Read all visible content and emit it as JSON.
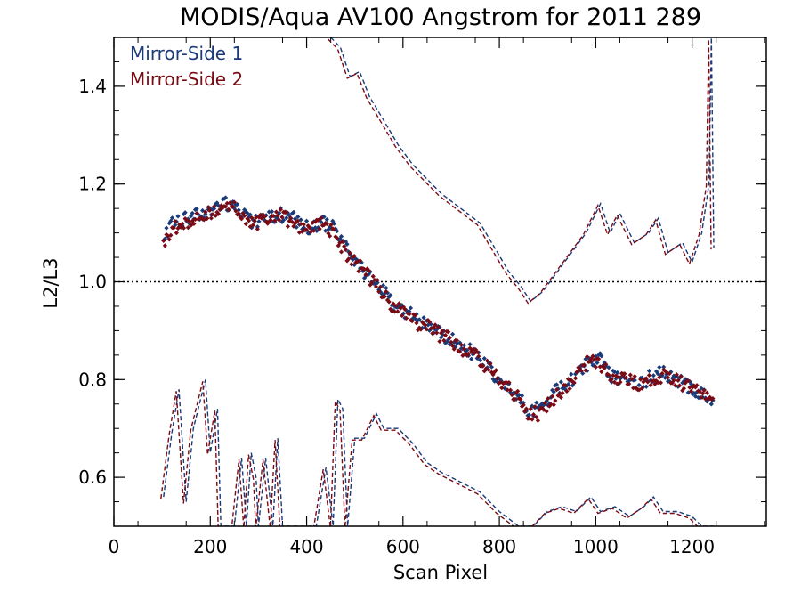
{
  "chart_data": {
    "type": "scatter",
    "title": "MODIS/Aqua AV100 Angstrom for 2011 289",
    "xlabel": "Scan Pixel",
    "ylabel": "L2/L3",
    "xlim": [
      0,
      1354
    ],
    "ylim": [
      0.5,
      1.5
    ],
    "xticks": [
      "0",
      "200",
      "400",
      "600",
      "800",
      "1000",
      "1200"
    ],
    "yticks": [
      "0.6",
      "0.8",
      "1.0",
      "1.2",
      "1.4"
    ],
    "reference_line": {
      "y": 1.0,
      "style": "dotted"
    },
    "legend": {
      "position": "top-left"
    },
    "colors": {
      "ms1": "#1a3a78",
      "ms2": "#7a0a14",
      "ref": "#000000"
    },
    "series": [
      {
        "name": "Mirror-Side 1",
        "color": "#1a3a78",
        "mean_points": [
          [
            103,
            1.09
          ],
          [
            120,
            1.12
          ],
          [
            150,
            1.13
          ],
          [
            180,
            1.14
          ],
          [
            210,
            1.15
          ],
          [
            240,
            1.16
          ],
          [
            260,
            1.15
          ],
          [
            290,
            1.12
          ],
          [
            320,
            1.13
          ],
          [
            340,
            1.14
          ],
          [
            370,
            1.13
          ],
          [
            400,
            1.11
          ],
          [
            430,
            1.12
          ],
          [
            460,
            1.11
          ],
          [
            480,
            1.07
          ],
          [
            500,
            1.04
          ],
          [
            520,
            1.02
          ],
          [
            540,
            1.0
          ],
          [
            560,
            0.98
          ],
          [
            580,
            0.95
          ],
          [
            600,
            0.94
          ],
          [
            620,
            0.93
          ],
          [
            650,
            0.91
          ],
          [
            680,
            0.89
          ],
          [
            700,
            0.88
          ],
          [
            720,
            0.87
          ],
          [
            750,
            0.85
          ],
          [
            780,
            0.82
          ],
          [
            800,
            0.8
          ],
          [
            820,
            0.78
          ],
          [
            840,
            0.76
          ],
          [
            860,
            0.74
          ],
          [
            880,
            0.74
          ],
          [
            900,
            0.76
          ],
          [
            920,
            0.78
          ],
          [
            950,
            0.8
          ],
          [
            970,
            0.82
          ],
          [
            990,
            0.84
          ],
          [
            1010,
            0.84
          ],
          [
            1030,
            0.81
          ],
          [
            1060,
            0.8
          ],
          [
            1090,
            0.79
          ],
          [
            1120,
            0.81
          ],
          [
            1140,
            0.82
          ],
          [
            1160,
            0.8
          ],
          [
            1180,
            0.8
          ],
          [
            1200,
            0.78
          ],
          [
            1220,
            0.77
          ],
          [
            1245,
            0.76
          ]
        ],
        "upper_band": [
          [
            103,
            0.56
          ],
          [
            120,
            0.69
          ],
          [
            135,
            0.78
          ],
          [
            150,
            0.55
          ],
          [
            165,
            0.7
          ],
          [
            190,
            0.8
          ],
          [
            200,
            0.65
          ],
          [
            215,
            0.74
          ],
          [
            222,
            0.5
          ],
          [
            230,
            0.5
          ],
          [
            250,
            0.5
          ],
          [
            265,
            0.64
          ],
          [
            275,
            0.5
          ],
          [
            285,
            0.65
          ],
          [
            295,
            0.6
          ],
          [
            300,
            0.5
          ],
          [
            315,
            0.64
          ],
          [
            330,
            0.5
          ],
          [
            340,
            0.68
          ],
          [
            350,
            0.5
          ],
          [
            380,
            0.5
          ],
          [
            395,
            0.5
          ],
          [
            400,
            0.5
          ],
          [
            420,
            0.5
          ],
          [
            440,
            0.62
          ],
          [
            455,
            0.5
          ],
          [
            465,
            0.76
          ],
          [
            475,
            0.74
          ],
          [
            485,
            0.5
          ],
          [
            500,
            0.68
          ],
          [
            520,
            0.68
          ],
          [
            545,
            0.73
          ],
          [
            560,
            0.7
          ],
          [
            590,
            0.7
          ],
          [
            620,
            0.67
          ],
          [
            650,
            0.63
          ],
          [
            680,
            0.61
          ],
          [
            720,
            0.59
          ],
          [
            760,
            0.57
          ],
          [
            800,
            0.53
          ],
          [
            840,
            0.5
          ],
          [
            870,
            0.5
          ],
          [
            900,
            0.53
          ],
          [
            930,
            0.54
          ],
          [
            960,
            0.53
          ],
          [
            990,
            0.56
          ],
          [
            1010,
            0.53
          ],
          [
            1040,
            0.54
          ],
          [
            1070,
            0.52
          ],
          [
            1100,
            0.54
          ],
          [
            1120,
            0.56
          ],
          [
            1140,
            0.53
          ],
          [
            1170,
            0.53
          ],
          [
            1200,
            0.52
          ],
          [
            1220,
            0.5
          ],
          [
            1245,
            0.5
          ]
        ],
        "lower_band": []
      },
      {
        "name": "Mirror-Side 2",
        "color": "#7a0a14",
        "mean_points": [
          [
            103,
            1.08
          ],
          [
            120,
            1.11
          ],
          [
            150,
            1.12
          ],
          [
            180,
            1.14
          ],
          [
            210,
            1.14
          ],
          [
            240,
            1.16
          ],
          [
            260,
            1.14
          ],
          [
            290,
            1.12
          ],
          [
            320,
            1.13
          ],
          [
            340,
            1.14
          ],
          [
            370,
            1.12
          ],
          [
            400,
            1.11
          ],
          [
            430,
            1.12
          ],
          [
            460,
            1.1
          ],
          [
            480,
            1.06
          ],
          [
            500,
            1.04
          ],
          [
            520,
            1.02
          ],
          [
            540,
            1.0
          ],
          [
            560,
            0.97
          ],
          [
            580,
            0.95
          ],
          [
            600,
            0.94
          ],
          [
            620,
            0.92
          ],
          [
            650,
            0.91
          ],
          [
            680,
            0.89
          ],
          [
            700,
            0.88
          ],
          [
            720,
            0.86
          ],
          [
            750,
            0.85
          ],
          [
            780,
            0.82
          ],
          [
            800,
            0.8
          ],
          [
            820,
            0.78
          ],
          [
            840,
            0.76
          ],
          [
            860,
            0.73
          ],
          [
            880,
            0.73
          ],
          [
            900,
            0.75
          ],
          [
            920,
            0.77
          ],
          [
            950,
            0.8
          ],
          [
            970,
            0.82
          ],
          [
            990,
            0.84
          ],
          [
            1010,
            0.83
          ],
          [
            1030,
            0.81
          ],
          [
            1060,
            0.8
          ],
          [
            1090,
            0.79
          ],
          [
            1120,
            0.8
          ],
          [
            1140,
            0.81
          ],
          [
            1160,
            0.8
          ],
          [
            1180,
            0.79
          ],
          [
            1200,
            0.78
          ],
          [
            1220,
            0.77
          ],
          [
            1245,
            0.76
          ]
        ],
        "upper_band": [],
        "lower_band": []
      }
    ],
    "upper_envelope": [
      [
        450,
        1.5
      ],
      [
        470,
        1.48
      ],
      [
        490,
        1.42
      ],
      [
        510,
        1.43
      ],
      [
        530,
        1.38
      ],
      [
        560,
        1.33
      ],
      [
        590,
        1.28
      ],
      [
        620,
        1.24
      ],
      [
        650,
        1.21
      ],
      [
        680,
        1.18
      ],
      [
        720,
        1.15
      ],
      [
        760,
        1.12
      ],
      [
        790,
        1.07
      ],
      [
        820,
        1.02
      ],
      [
        845,
        0.99
      ],
      [
        865,
        0.96
      ],
      [
        890,
        0.98
      ],
      [
        920,
        1.02
      ],
      [
        950,
        1.06
      ],
      [
        980,
        1.1
      ],
      [
        1010,
        1.16
      ],
      [
        1030,
        1.1
      ],
      [
        1050,
        1.14
      ],
      [
        1080,
        1.08
      ],
      [
        1110,
        1.1
      ],
      [
        1130,
        1.13
      ],
      [
        1150,
        1.06
      ],
      [
        1180,
        1.08
      ],
      [
        1200,
        1.04
      ],
      [
        1220,
        1.1
      ],
      [
        1235,
        1.2
      ],
      [
        1240,
        1.5
      ],
      [
        1245,
        1.07
      ]
    ]
  }
}
